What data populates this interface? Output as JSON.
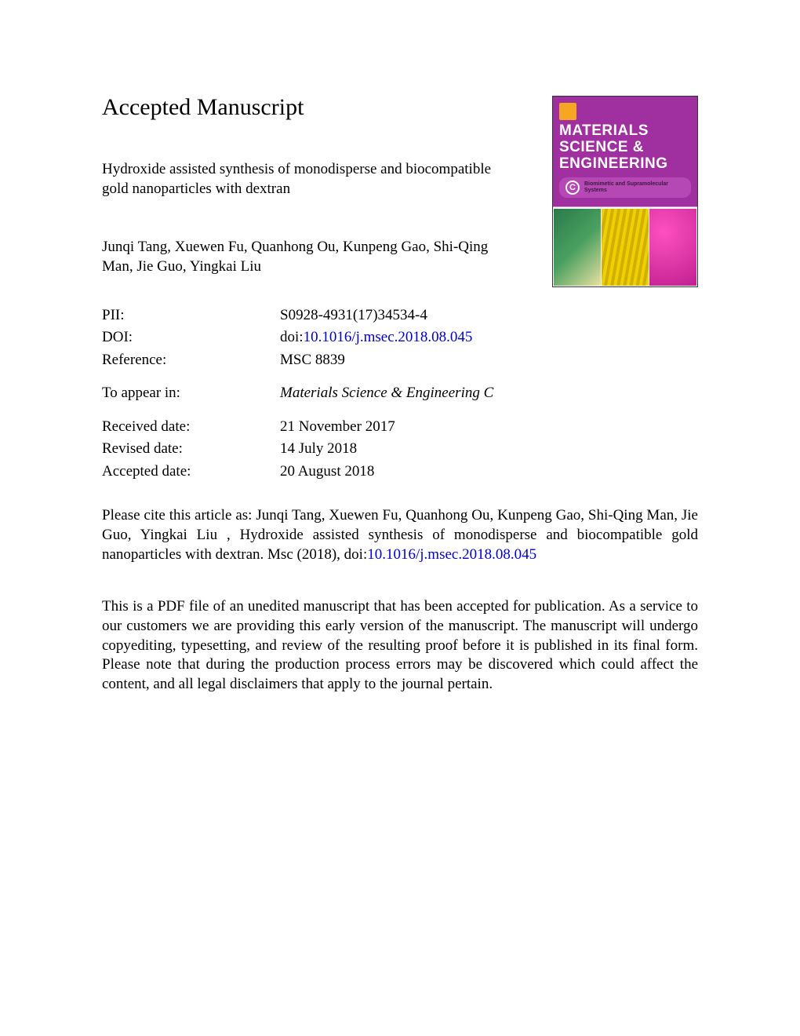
{
  "header": {
    "title": "Accepted Manuscript"
  },
  "article": {
    "title": "Hydroxide assisted synthesis of monodisperse and biocompatible gold nanoparticles with dextran",
    "authors": "Junqi Tang, Xuewen Fu, Quanhong Ou, Kunpeng Gao, Shi-Qing Man, Jie Guo, Yingkai Liu"
  },
  "metadata": {
    "pii_label": "PII:",
    "pii_value": "S0928-4931(17)34534-4",
    "doi_label": "DOI:",
    "doi_prefix": "doi:",
    "doi_link": "10.1016/j.msec.2018.08.045",
    "reference_label": "Reference:",
    "reference_value": "MSC 8839",
    "appear_label": "To appear in:",
    "appear_value": "Materials Science & Engineering C",
    "received_label": "Received date:",
    "received_value": "21 November 2017",
    "revised_label": "Revised date:",
    "revised_value": "14 July 2018",
    "accepted_label": "Accepted date:",
    "accepted_value": "20 August 2018"
  },
  "citation": {
    "text_before_link": "Please cite this article as: Junqi Tang, Xuewen Fu, Quanhong Ou, Kunpeng Gao, Shi-Qing Man, Jie Guo, Yingkai Liu , Hydroxide assisted synthesis of monodisperse and biocompatible gold nanoparticles with dextran. Msc (2018), doi:",
    "link_text": "10.1016/j.msec.2018.08.045"
  },
  "disclaimer": {
    "text": "This is a PDF file of an unedited manuscript that has been accepted for publication. As a service to our customers we are providing this early version of the manuscript. The manuscript will undergo copyediting, typesetting, and review of the resulting proof before it is published in its final form. Please note that during the production process errors may be discovered which could affect the content, and all legal disclaimers that apply to the journal pertain."
  },
  "cover": {
    "journal_name": "MATERIALS SCIENCE & ENGINEERING",
    "c_letter": "C",
    "subtitle": "Biomimetic and Supramolecular Systems"
  },
  "colors": {
    "link_color": "#0000cc",
    "cover_purple": "#a030a0",
    "cover_subtitle_bg": "#b548b5",
    "elsevier_orange": "#f5a623",
    "text_color": "#000000",
    "background": "#ffffff"
  }
}
